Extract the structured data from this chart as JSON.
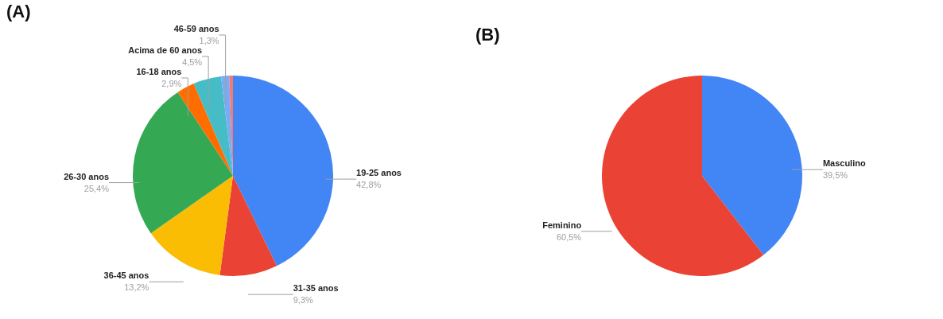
{
  "chart_data": [
    {
      "type": "pie",
      "title": "(A)",
      "categories": [
        "19-25 anos",
        "31-35 anos",
        "36-45 anos",
        "26-30 anos",
        "16-18 anos",
        "Acima de 60 anos",
        "46-59 anos",
        null
      ],
      "values": [
        42.8,
        9.3,
        13.2,
        25.4,
        2.9,
        4.5,
        1.3,
        0.6
      ],
      "value_labels": [
        "42,8%",
        "9,3%",
        "13,2%",
        "25,4%",
        "2,9%",
        "4,5%",
        "1,3%",
        null
      ],
      "colors": [
        "#4285f4",
        "#ea4335",
        "#fbbc04",
        "#34a853",
        "#ff6d01",
        "#46bdc6",
        "#7baaf7",
        "#f07b72"
      ]
    },
    {
      "type": "pie",
      "title": "(B)",
      "categories": [
        "Masculino",
        "Feminino"
      ],
      "values": [
        39.5,
        60.5
      ],
      "value_labels": [
        "39,5%",
        "60,5%"
      ],
      "colors": [
        "#4285f4",
        "#ea4335"
      ]
    }
  ]
}
